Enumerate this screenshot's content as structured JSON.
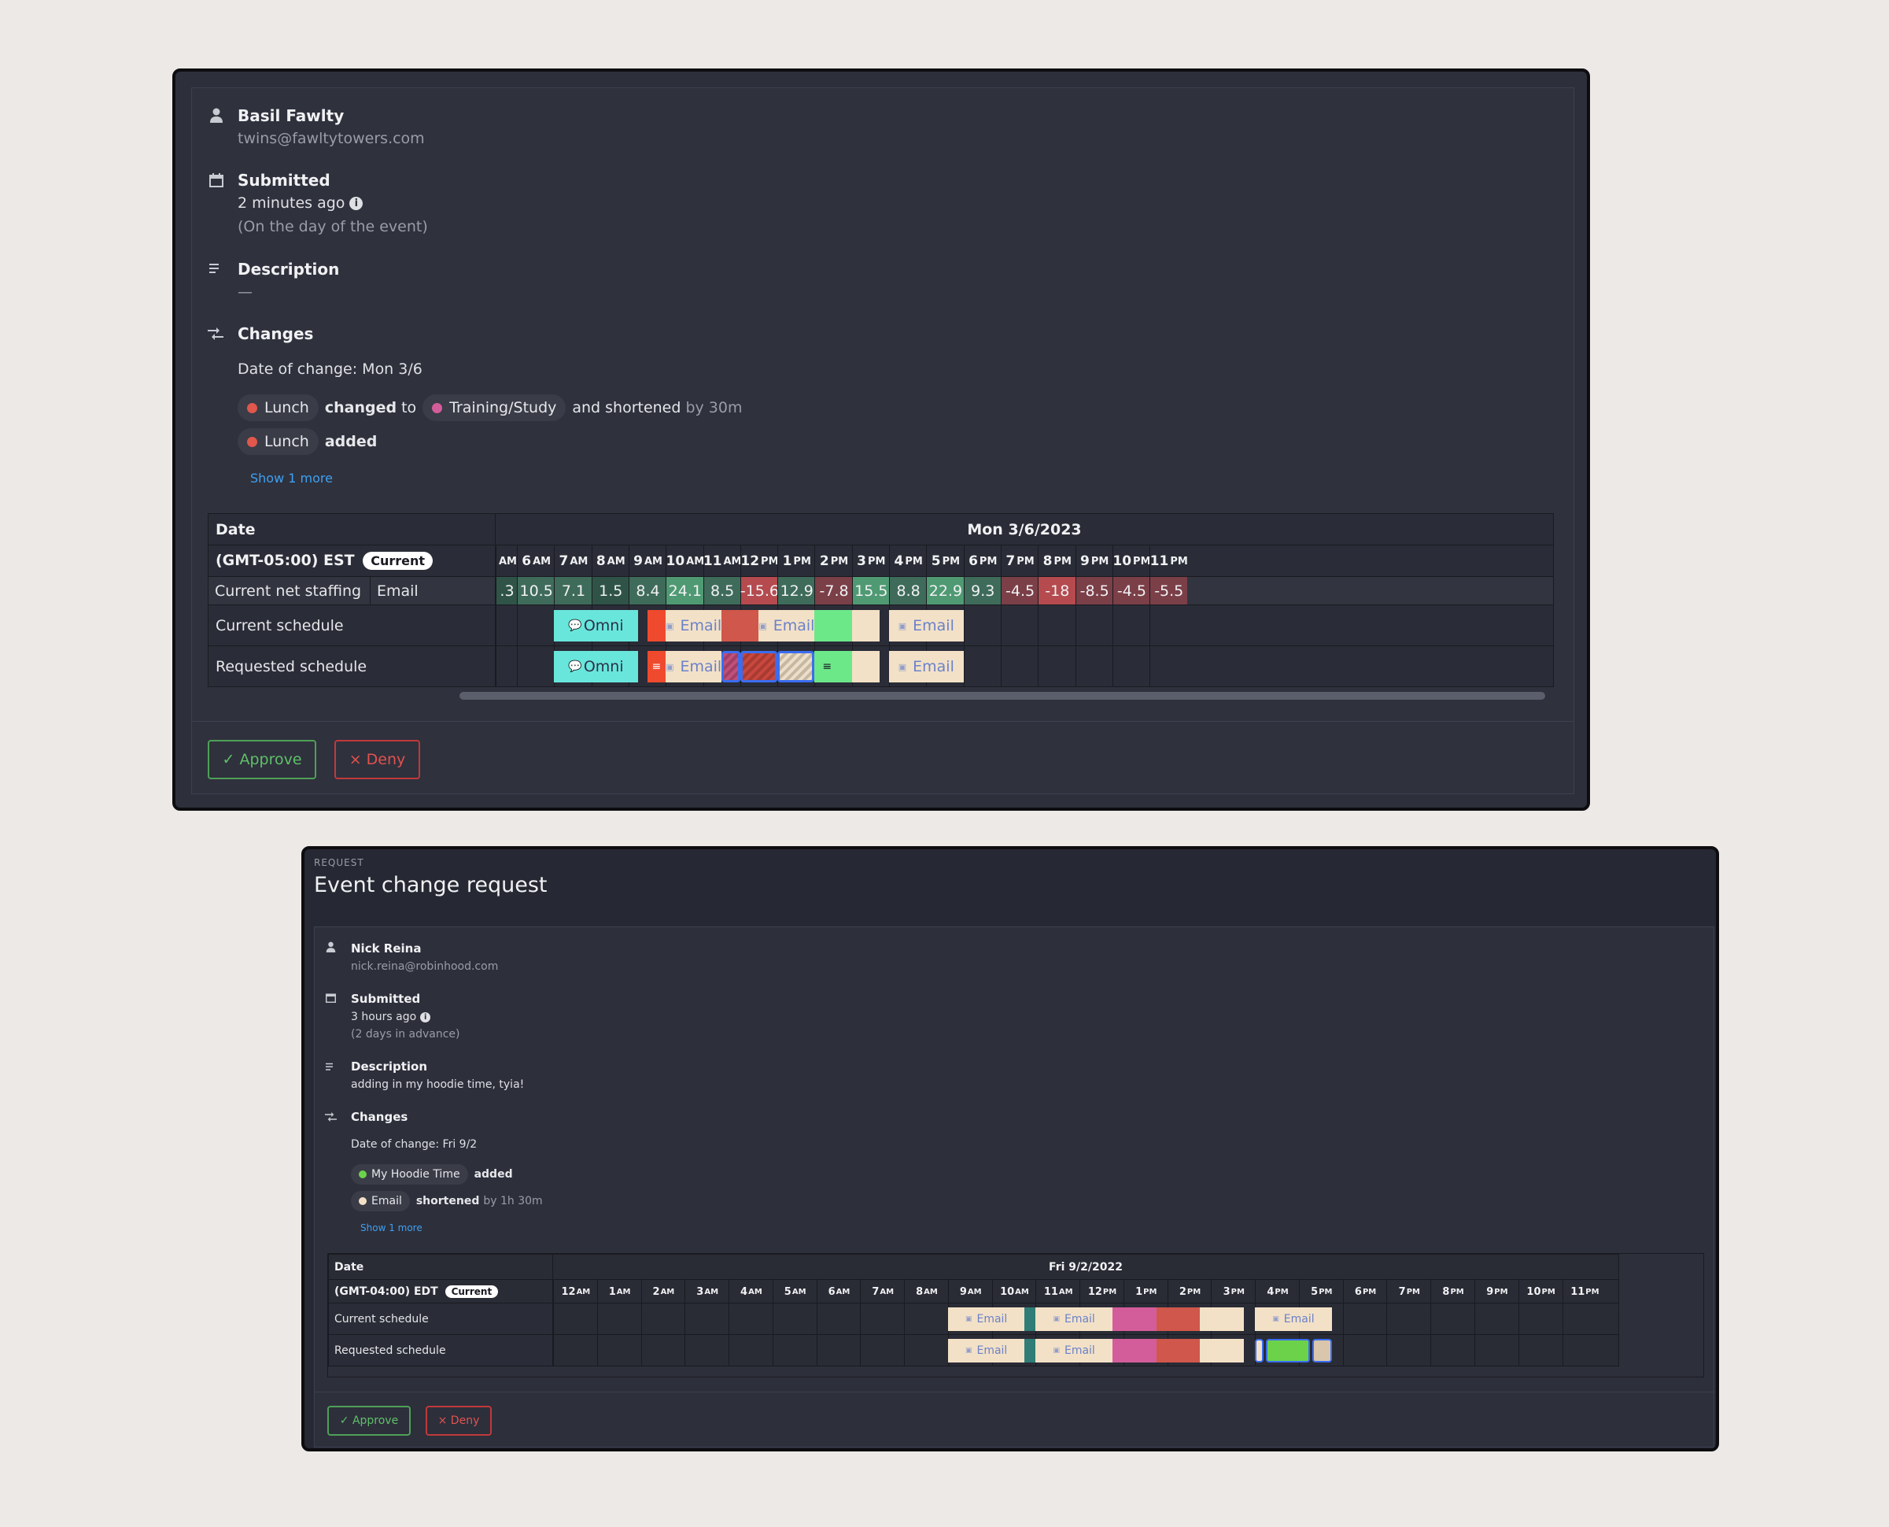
{
  "card1": {
    "user_name": "Basil Fawlty",
    "user_email": "twins@fawltytowers.com",
    "submitted_label": "Submitted",
    "submitted_time": "2 minutes ago",
    "submitted_note": "(On the day of the event)",
    "description_label": "Description",
    "description_value": "—",
    "changes_label": "Changes",
    "date_of_change": "Date of change: Mon 3/6",
    "change1": {
      "pill1": "Lunch",
      "pill1_color": "#e0574c",
      "verb": "changed",
      "to": "to",
      "pill2": "Training/Study",
      "pill2_color": "#d35d9a",
      "and": "and",
      "verb2": "shortened",
      "by": "by 30m"
    },
    "change2": {
      "pill1": "Lunch",
      "pill1_color": "#e0574c",
      "verb": "added"
    },
    "show_more": "Show 1 more",
    "grid": {
      "date_label": "Date",
      "date_value": "Mon 3/6/2023",
      "tz_label": "(GMT-05:00) EST",
      "current_badge": "Current",
      "hours": [
        [
          "",
          "AM"
        ],
        [
          "6",
          "AM"
        ],
        [
          "7",
          "AM"
        ],
        [
          "8",
          "AM"
        ],
        [
          "9",
          "AM"
        ],
        [
          "10",
          "AM"
        ],
        [
          "11",
          "AM"
        ],
        [
          "12",
          "PM"
        ],
        [
          "1",
          "PM"
        ],
        [
          "2",
          "PM"
        ],
        [
          "3",
          "PM"
        ],
        [
          "4",
          "PM"
        ],
        [
          "5",
          "PM"
        ],
        [
          "6",
          "PM"
        ],
        [
          "7",
          "PM"
        ],
        [
          "8",
          "PM"
        ],
        [
          "9",
          "PM"
        ],
        [
          "10",
          "PM"
        ],
        [
          "11",
          "PM"
        ]
      ],
      "staffing_label": "Current net staffing",
      "staffing_channel": "Email",
      "staffing_values": [
        ".3",
        "10.5",
        "7.1",
        "1.5",
        "8.4",
        "24.1",
        "8.5",
        "-15.6",
        "12.9",
        "-7.8",
        "15.5",
        "8.8",
        "22.9",
        "9.3",
        "-4.5",
        "-18",
        "-8.5",
        "-4.5",
        "-5.5"
      ],
      "current_schedule_label": "Current schedule",
      "requested_schedule_label": "Requested schedule",
      "omni_label": "Omni",
      "email_label": "Email"
    },
    "approve": "✓ Approve",
    "deny": "× Deny"
  },
  "card2": {
    "kicker": "REQUEST",
    "title": "Event change request",
    "user_name": "Nick Reina",
    "user_email": "nick.reina@robinhood.com",
    "submitted_label": "Submitted",
    "submitted_time": "3 hours ago",
    "submitted_note": "(2 days in advance)",
    "description_label": "Description",
    "description_value": "adding in my hoodie time, tyia!",
    "changes_label": "Changes",
    "date_of_change": "Date of change: Fri 9/2",
    "change1": {
      "pill1": "My Hoodie Time",
      "pill1_color": "#6cd24a",
      "verb": "added"
    },
    "change2": {
      "pill1": "Email",
      "pill1_color": "#f3e1c7",
      "verb": "shortened",
      "by": "by 1h 30m"
    },
    "show_more": "Show 1 more",
    "grid": {
      "date_label": "Date",
      "date_value": "Fri 9/2/2022",
      "tz_label": "(GMT-04:00) EDT",
      "current_badge": "Current",
      "hours": [
        [
          "12",
          "AM"
        ],
        [
          "1",
          "AM"
        ],
        [
          "2",
          "AM"
        ],
        [
          "3",
          "AM"
        ],
        [
          "4",
          "AM"
        ],
        [
          "5",
          "AM"
        ],
        [
          "6",
          "AM"
        ],
        [
          "7",
          "AM"
        ],
        [
          "8",
          "AM"
        ],
        [
          "9",
          "AM"
        ],
        [
          "10",
          "AM"
        ],
        [
          "11",
          "AM"
        ],
        [
          "12",
          "PM"
        ],
        [
          "1",
          "PM"
        ],
        [
          "2",
          "PM"
        ],
        [
          "3",
          "PM"
        ],
        [
          "4",
          "PM"
        ],
        [
          "5",
          "PM"
        ],
        [
          "6",
          "PM"
        ],
        [
          "7",
          "PM"
        ],
        [
          "8",
          "PM"
        ],
        [
          "9",
          "PM"
        ],
        [
          "10",
          "PM"
        ],
        [
          "11",
          "PM"
        ]
      ],
      "current_schedule_label": "Current schedule",
      "requested_schedule_label": "Requested schedule",
      "email_label": "Email"
    },
    "approve": "✓ Approve",
    "deny": "× Deny"
  }
}
